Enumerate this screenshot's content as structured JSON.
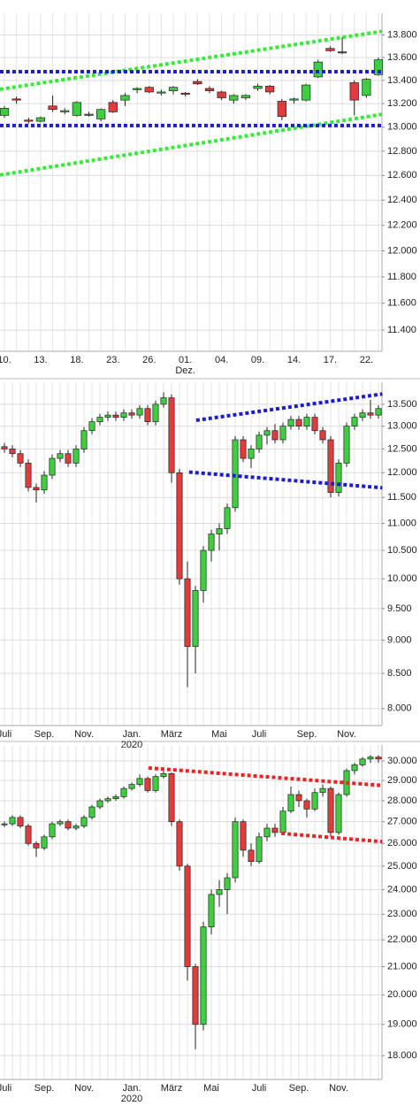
{
  "chart_data": [
    {
      "type": "candlestick",
      "log_scale": true,
      "grid": true,
      "up_color": "#3ecf3e",
      "down_color": "#e23b3b",
      "categories": [
        "10.",
        null,
        null,
        "13.",
        null,
        null,
        "18.",
        null,
        null,
        "23.",
        null,
        null,
        "26.",
        null,
        null,
        "01.",
        null,
        null,
        "04.",
        null,
        null,
        "09.",
        null,
        null,
        "14.",
        null,
        null,
        "17.",
        null,
        null,
        "22.",
        null
      ],
      "sublabel": {
        "index": 15,
        "text": "Dez."
      },
      "open": [
        13100,
        13240,
        13060,
        13050,
        13180,
        13130,
        13100,
        13110,
        13070,
        13210,
        13230,
        13320,
        13340,
        13290,
        13310,
        13290,
        13390,
        13330,
        13300,
        13230,
        13250,
        13330,
        13350,
        13220,
        13230,
        13230,
        13430,
        13680,
        13650,
        13380,
        13270,
        13450
      ],
      "high": [
        13180,
        13260,
        13080,
        13090,
        13270,
        13160,
        13220,
        13130,
        13160,
        13230,
        13290,
        13340,
        13350,
        13320,
        13350,
        13300,
        13410,
        13350,
        13310,
        13280,
        13280,
        13370,
        13360,
        13240,
        13250,
        13370,
        13580,
        13700,
        13780,
        13400,
        13420,
        13600
      ],
      "low": [
        13080,
        13200,
        13030,
        13040,
        13130,
        13110,
        13090,
        13090,
        13050,
        13120,
        13180,
        13290,
        13290,
        13270,
        13280,
        13260,
        13360,
        13290,
        13230,
        13200,
        13230,
        13310,
        13280,
        13060,
        13200,
        13220,
        13420,
        13650,
        13630,
        13100,
        13250,
        13440
      ],
      "close": [
        13160,
        13230,
        13050,
        13080,
        13150,
        13140,
        13210,
        13100,
        13150,
        13130,
        13270,
        13330,
        13300,
        13300,
        13340,
        13280,
        13370,
        13310,
        13250,
        13270,
        13270,
        13350,
        13300,
        13090,
        13240,
        13360,
        13560,
        13660,
        13640,
        13230,
        13410,
        13580
      ],
      "trendlines": [
        {
          "color": "#35ec35",
          "x": [
            -0.37,
            31.3
          ],
          "y": [
            13323,
            13832
          ]
        },
        {
          "color": "#35ec35",
          "x": [
            -0.37,
            31.3
          ],
          "y": [
            12604,
            13109
          ]
        },
        {
          "color": "#1c1cd0",
          "x": [
            -0.37,
            31.3
          ],
          "y": [
            13476,
            13476
          ]
        },
        {
          "color": "#1c1cd0",
          "x": [
            -0.37,
            31.3
          ],
          "y": [
            13014,
            13014
          ]
        }
      ],
      "ylim": [
        11245,
        13995
      ],
      "yticks": [
        {
          "value": 11400,
          "label": "11.400"
        },
        {
          "value": 11600,
          "label": "11.600"
        },
        {
          "value": 11800,
          "label": "11.800"
        },
        {
          "value": 12000,
          "label": "12.000"
        },
        {
          "value": 12200,
          "label": "12.200"
        },
        {
          "value": 12400,
          "label": "12.400"
        },
        {
          "value": 12600,
          "label": "12.600"
        },
        {
          "value": 12800,
          "label": "12.800"
        },
        {
          "value": 13000,
          "label": "13.000"
        },
        {
          "value": 13200,
          "label": "13.200"
        },
        {
          "value": 13400,
          "label": "13.400"
        },
        {
          "value": 13600,
          "label": "13.600"
        },
        {
          "value": 13800,
          "label": "13.800"
        }
      ]
    },
    {
      "type": "candlestick",
      "log_scale": true,
      "grid": true,
      "up_color": "#3ecf3e",
      "down_color": "#e23b3b",
      "categories": [
        "Juli",
        null,
        null,
        null,
        null,
        "Sep.",
        null,
        null,
        null,
        null,
        "Nov.",
        null,
        null,
        null,
        null,
        null,
        "Jan.",
        null,
        null,
        null,
        null,
        "März",
        null,
        null,
        null,
        null,
        null,
        "Mai",
        null,
        null,
        null,
        null,
        "Juli",
        null,
        null,
        null,
        null,
        null,
        "Sep.",
        null,
        null,
        null,
        null,
        "Nov.",
        null,
        null,
        null,
        null
      ],
      "sublabel": {
        "index": 16,
        "text": "2020"
      },
      "open": [
        12550,
        12500,
        12400,
        12200,
        11700,
        11650,
        11950,
        12300,
        12400,
        12200,
        12500,
        12900,
        13100,
        13200,
        13250,
        13200,
        13300,
        13250,
        13400,
        13100,
        13500,
        13650,
        12000,
        10000,
        8900,
        9800,
        10500,
        10800,
        10900,
        11300,
        12700,
        12300,
        12500,
        12800,
        12900,
        12700,
        13000,
        13150,
        13000,
        13200,
        12900,
        12700,
        11600,
        12200,
        13000,
        13200,
        13300,
        13250
      ],
      "high": [
        12630,
        12580,
        12480,
        12280,
        11780,
        12030,
        12380,
        12480,
        12480,
        12580,
        12980,
        13180,
        13280,
        13330,
        13330,
        13380,
        13380,
        13480,
        13480,
        13580,
        13780,
        13730,
        12080,
        10300,
        9880,
        10580,
        10880,
        11000,
        11380,
        12780,
        12780,
        12580,
        12880,
        12980,
        13050,
        13080,
        13230,
        13230,
        13280,
        13280,
        12980,
        12780,
        12280,
        13080,
        13280,
        13380,
        13600,
        13480
      ],
      "low": [
        12420,
        12320,
        12120,
        11620,
        11400,
        11570,
        11870,
        12220,
        12120,
        12120,
        12420,
        12820,
        13020,
        13120,
        13120,
        13120,
        13170,
        13170,
        13020,
        13020,
        13420,
        11800,
        9900,
        8300,
        8500,
        9600,
        10300,
        10500,
        10800,
        11220,
        12220,
        12100,
        12420,
        12600,
        12620,
        12620,
        12920,
        12920,
        12920,
        12820,
        12620,
        11500,
        11520,
        12120,
        12920,
        13120,
        13170,
        13170
      ],
      "close": [
        12500,
        12400,
        12200,
        11700,
        11650,
        11950,
        12300,
        12400,
        12200,
        12500,
        12900,
        13100,
        13200,
        13250,
        13200,
        13300,
        13250,
        13400,
        13100,
        13500,
        13650,
        12000,
        10000,
        8900,
        9800,
        10500,
        10800,
        10900,
        11300,
        12700,
        12300,
        12500,
        12800,
        12900,
        12700,
        13000,
        13150,
        13000,
        13200,
        12900,
        12700,
        11600,
        12200,
        13000,
        13200,
        13300,
        13250,
        13400
      ],
      "trendlines": [
        {
          "color": "#1c1cd0",
          "x": [
            24.1,
            47.5
          ],
          "y": [
            13132,
            13740
          ]
        },
        {
          "color": "#1c1cd0",
          "x": [
            23.2,
            47.5
          ],
          "y": [
            12013,
            11693
          ]
        }
      ],
      "ylim": [
        7770,
        14020
      ],
      "yticks": [
        {
          "value": 8000,
          "label": "8.000"
        },
        {
          "value": 8500,
          "label": "8.500"
        },
        {
          "value": 9000,
          "label": "9.000"
        },
        {
          "value": 9500,
          "label": "9.500"
        },
        {
          "value": 10000,
          "label": "10.000"
        },
        {
          "value": 10500,
          "label": "10.500"
        },
        {
          "value": 11000,
          "label": "11.000"
        },
        {
          "value": 11500,
          "label": "11.500"
        },
        {
          "value": 12000,
          "label": "12.000"
        },
        {
          "value": 12500,
          "label": "12.500"
        },
        {
          "value": 13000,
          "label": "13.000"
        },
        {
          "value": 13500,
          "label": "13.500"
        }
      ]
    },
    {
      "type": "candlestick",
      "log_scale": true,
      "grid": true,
      "up_color": "#3ecf3e",
      "down_color": "#e23b3b",
      "categories": [
        "Juli",
        null,
        null,
        null,
        null,
        "Sep.",
        null,
        null,
        null,
        null,
        "Nov.",
        null,
        null,
        null,
        null,
        null,
        "Jan.",
        null,
        null,
        null,
        null,
        "März",
        null,
        null,
        null,
        null,
        "Mai",
        null,
        null,
        null,
        null,
        null,
        "Juli",
        null,
        null,
        null,
        null,
        "Sep.",
        null,
        null,
        null,
        null,
        "Nov.",
        null,
        null,
        null,
        null,
        null
      ],
      "sublabel": {
        "index": 16,
        "text": "2020"
      },
      "open": [
        26850,
        26900,
        27200,
        26800,
        26000,
        25800,
        26300,
        26900,
        27000,
        26700,
        26800,
        27200,
        27700,
        28000,
        28100,
        28200,
        28600,
        28800,
        29100,
        28500,
        29200,
        29350,
        27000,
        25000,
        21000,
        19000,
        22500,
        23800,
        24000,
        24500,
        27000,
        25700,
        25200,
        26300,
        26700,
        26500,
        27500,
        28300,
        28000,
        27600,
        28400,
        28600,
        26500,
        28300,
        29500,
        29800,
        30100,
        30200
      ],
      "high": [
        27000,
        27300,
        27300,
        26900,
        26100,
        26400,
        27000,
        27100,
        27100,
        26900,
        27300,
        27800,
        28100,
        28200,
        28300,
        28700,
        28900,
        29300,
        29200,
        29300,
        29500,
        29400,
        27100,
        25100,
        21100,
        22700,
        24000,
        24400,
        24700,
        27200,
        27100,
        26000,
        26500,
        26900,
        26900,
        27700,
        28700,
        28500,
        28100,
        28600,
        28800,
        28700,
        28400,
        29600,
        29900,
        30200,
        30300,
        30300
      ],
      "low": [
        26750,
        26800,
        26700,
        25900,
        25400,
        25700,
        26200,
        26800,
        26600,
        26600,
        26700,
        27100,
        27600,
        27900,
        28000,
        28100,
        28500,
        28700,
        28400,
        28400,
        29100,
        26800,
        24800,
        20500,
        18200,
        18800,
        22200,
        23300,
        23000,
        24300,
        25400,
        25000,
        25100,
        26100,
        26300,
        26400,
        27400,
        27700,
        27200,
        27500,
        28200,
        26300,
        26400,
        28200,
        29300,
        29700,
        29900,
        29900
      ],
      "close": [
        26900,
        27200,
        26800,
        26000,
        25800,
        26300,
        26900,
        27000,
        26700,
        26800,
        27200,
        27700,
        28000,
        28100,
        28200,
        28600,
        28800,
        29100,
        28500,
        29200,
        29350,
        27000,
        25000,
        21000,
        19000,
        22500,
        23800,
        24000,
        24500,
        27000,
        25700,
        25200,
        26300,
        26700,
        26500,
        27500,
        28300,
        28000,
        27600,
        28400,
        28600,
        26500,
        28300,
        29500,
        29800,
        30100,
        30200,
        30100
      ],
      "trendlines": [
        {
          "color": "#ee2222",
          "x": [
            18.1,
            47.5
          ],
          "y": [
            29636,
            28751
          ]
        },
        {
          "color": "#ee2222",
          "x": [
            34.8,
            47.5
          ],
          "y": [
            26460,
            26080
          ]
        }
      ],
      "ylim": [
        17270,
        30840
      ],
      "yticks": [
        {
          "value": 18000,
          "label": "18.000"
        },
        {
          "value": 19000,
          "label": "19.000"
        },
        {
          "value": 20000,
          "label": "20.000"
        },
        {
          "value": 21000,
          "label": "21.000"
        },
        {
          "value": 22000,
          "label": "22.000"
        },
        {
          "value": 23000,
          "label": "23.000"
        },
        {
          "value": 24000,
          "label": "24.000"
        },
        {
          "value": 25000,
          "label": "25.000"
        },
        {
          "value": 26000,
          "label": "26.000"
        },
        {
          "value": 27000,
          "label": "27.000"
        },
        {
          "value": 28000,
          "label": "28.000"
        },
        {
          "value": 29000,
          "label": "29.000"
        },
        {
          "value": 30000,
          "label": "30.000"
        }
      ]
    }
  ]
}
